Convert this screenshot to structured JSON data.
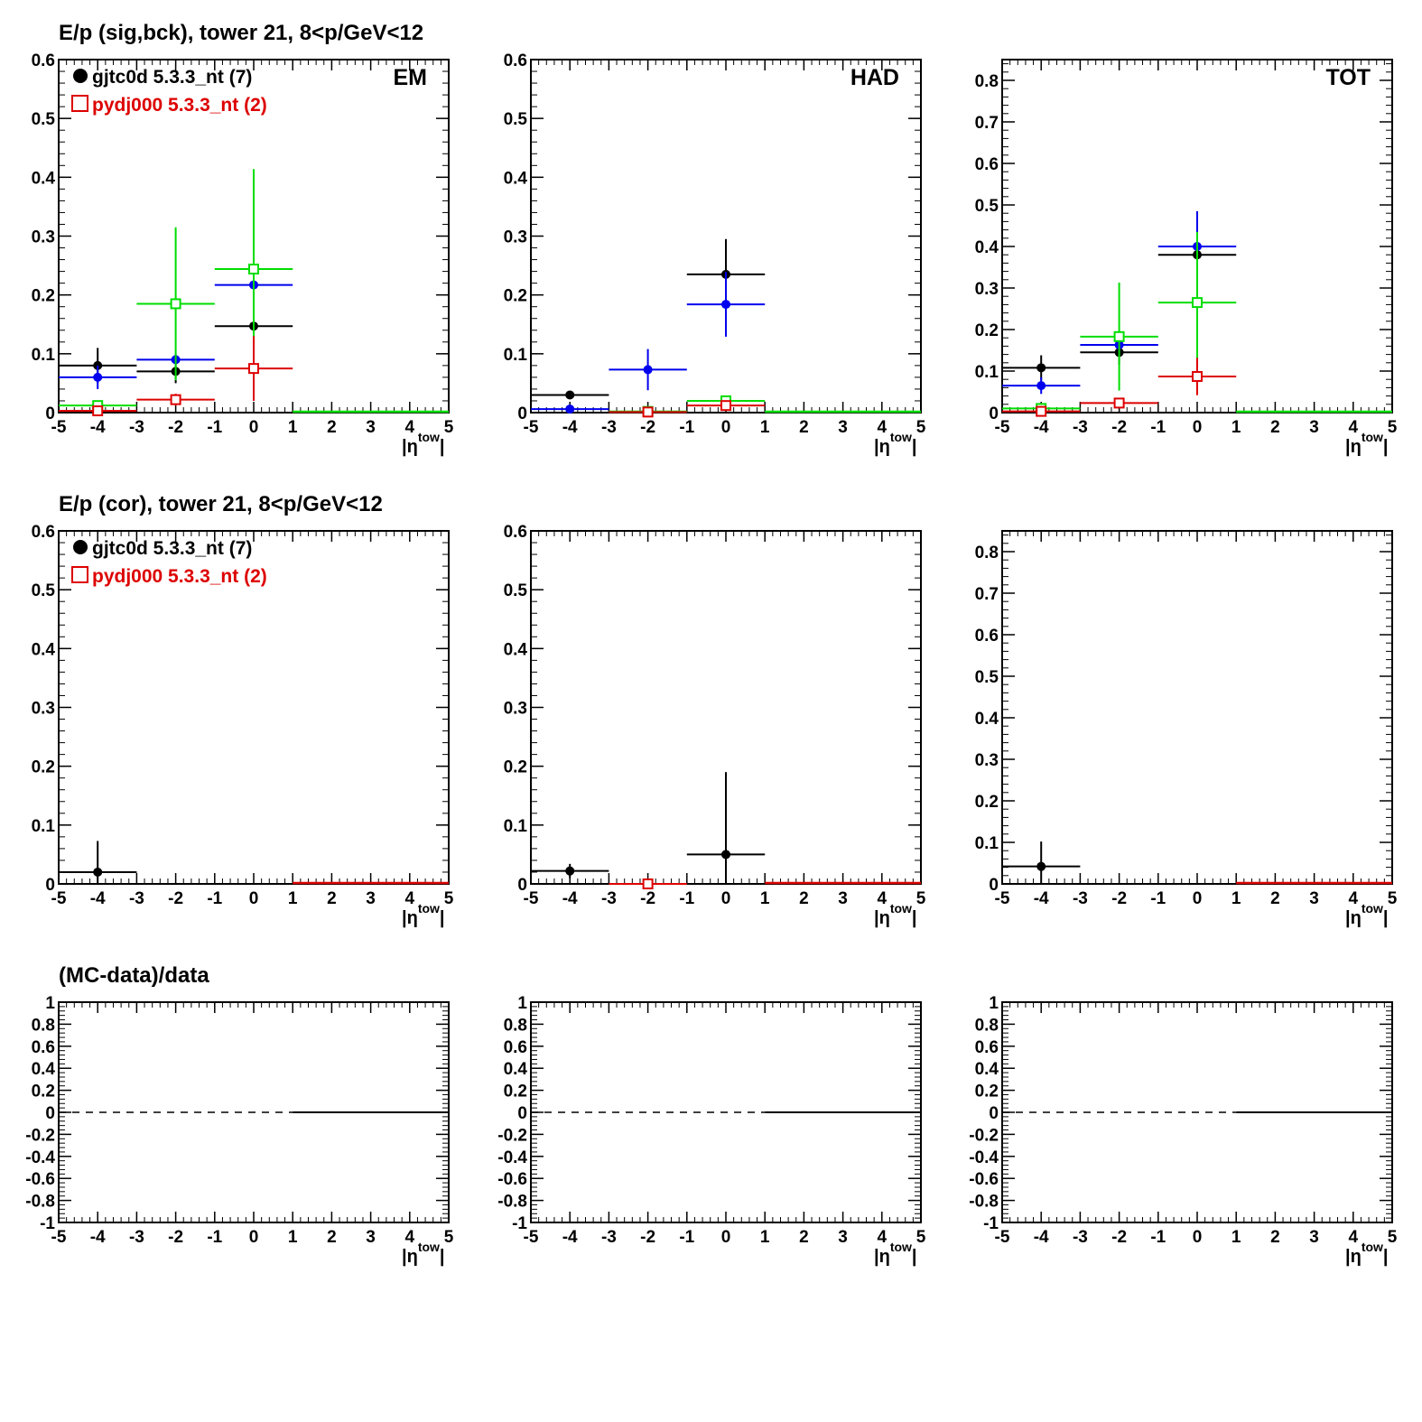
{
  "rows": [
    {
      "title": "E/p (sig,bck), tower 21,  8<p/GeV<12"
    },
    {
      "title": "E/p (cor), tower 21,  8<p/GeV<12"
    },
    {
      "title": "(MC-data)/data"
    }
  ],
  "legend": {
    "data_label": "gjtc0d 5.3.3_nt (7)",
    "mc_label": "pydj000 5.3.3_nt (2)"
  },
  "colors": {
    "black": "#000000",
    "blue": "#0000ee",
    "green": "#00dd00",
    "red": "#dd0000"
  },
  "chart_data": [
    {
      "type": "scatter",
      "row": 0,
      "tag": "EM",
      "xlabel": "|η^tow|",
      "xlim": [
        -5,
        5
      ],
      "ylim": [
        0,
        0.6
      ],
      "yticks": [
        "0",
        "0.1",
        "0.2",
        "0.3",
        "0.4",
        "0.5",
        "0.6"
      ],
      "xticks": [
        "-5",
        "-4",
        "-3",
        "-2",
        "-1",
        "0",
        "1",
        "2",
        "3",
        "4",
        "5"
      ],
      "series": [
        {
          "color": "black",
          "marker": "dot",
          "points": [
            {
              "x": -4,
              "y": 0.08,
              "xerr": 1,
              "yerr": 0.03
            },
            {
              "x": -2,
              "y": 0.07,
              "xerr": 1,
              "yerr": 0.02
            },
            {
              "x": 0,
              "y": 0.147,
              "xerr": 1,
              "yerr": 0.03
            }
          ]
        },
        {
          "color": "blue",
          "marker": "dot",
          "points": [
            {
              "x": -4,
              "y": 0.06,
              "xerr": 1,
              "yerr": 0.02
            },
            {
              "x": -2,
              "y": 0.09,
              "xerr": 1,
              "yerr": 0.01
            },
            {
              "x": 0,
              "y": 0.217,
              "xerr": 1,
              "yerr": 0.02
            }
          ]
        },
        {
          "color": "green",
          "marker": "square",
          "points": [
            {
              "x": -4,
              "y": 0.012,
              "xerr": 1,
              "yerr": 0.005
            },
            {
              "x": -2,
              "y": 0.185,
              "xerr": 1,
              "yerr": 0.13
            },
            {
              "x": 0,
              "y": 0.244,
              "xerr": 1,
              "yerr": 0.17
            }
          ]
        },
        {
          "color": "red",
          "marker": "square",
          "points": [
            {
              "x": -4,
              "y": 0.003,
              "xerr": 1,
              "yerr": 0
            },
            {
              "x": -2,
              "y": 0.022,
              "xerr": 1,
              "yerr": 0.01
            },
            {
              "x": 0,
              "y": 0.075,
              "xerr": 1,
              "yerr": 0.055
            }
          ]
        }
      ]
    },
    {
      "type": "scatter",
      "row": 0,
      "tag": "HAD",
      "xlabel": "|η^tow|",
      "xlim": [
        -5,
        5
      ],
      "ylim": [
        0,
        0.6
      ],
      "yticks": [
        "0",
        "0.1",
        "0.2",
        "0.3",
        "0.4",
        "0.5",
        "0.6"
      ],
      "xticks": [
        "-5",
        "-4",
        "-3",
        "-2",
        "-1",
        "0",
        "1",
        "2",
        "3",
        "4",
        "5"
      ],
      "series": [
        {
          "color": "black",
          "marker": "dot",
          "points": [
            {
              "x": -4,
              "y": 0.03,
              "xerr": 1,
              "yerr": 0.005
            },
            {
              "x": 0,
              "y": 0.235,
              "xerr": 1,
              "yerr": 0.06
            }
          ]
        },
        {
          "color": "blue",
          "marker": "dot",
          "points": [
            {
              "x": -4,
              "y": 0.006,
              "xerr": 1,
              "yerr": 0.003
            },
            {
              "x": -2,
              "y": 0.073,
              "xerr": 1,
              "yerr": 0.035
            },
            {
              "x": 0,
              "y": 0.184,
              "xerr": 1,
              "yerr": 0.055
            }
          ]
        },
        {
          "color": "green",
          "marker": "square",
          "points": [
            {
              "x": -2,
              "y": 0.002,
              "xerr": 1,
              "yerr": 0
            },
            {
              "x": 0,
              "y": 0.02,
              "xerr": 1,
              "yerr": 0.008
            }
          ]
        },
        {
          "color": "red",
          "marker": "square",
          "points": [
            {
              "x": -2,
              "y": 0.001,
              "xerr": 1,
              "yerr": 0
            },
            {
              "x": 0,
              "y": 0.012,
              "xerr": 1,
              "yerr": 0.006
            }
          ]
        }
      ]
    },
    {
      "type": "scatter",
      "row": 0,
      "tag": "TOT",
      "xlabel": "|η^tow|",
      "xlim": [
        -5,
        5
      ],
      "ylim": [
        0,
        0.85
      ],
      "yticks": [
        "0",
        "0.1",
        "0.2",
        "0.3",
        "0.4",
        "0.5",
        "0.6",
        "0.7",
        "0.8"
      ],
      "xticks": [
        "-5",
        "-4",
        "-3",
        "-2",
        "-1",
        "0",
        "1",
        "2",
        "3",
        "4",
        "5"
      ],
      "series": [
        {
          "color": "black",
          "marker": "dot",
          "points": [
            {
              "x": -4,
              "y": 0.108,
              "xerr": 1,
              "yerr": 0.03
            },
            {
              "x": -2,
              "y": 0.145,
              "xerr": 1,
              "yerr": 0.03
            },
            {
              "x": 0,
              "y": 0.38,
              "xerr": 1,
              "yerr": 0.05
            }
          ]
        },
        {
          "color": "blue",
          "marker": "dot",
          "points": [
            {
              "x": -4,
              "y": 0.065,
              "xerr": 1,
              "yerr": 0.02
            },
            {
              "x": -2,
              "y": 0.163,
              "xerr": 1,
              "yerr": 0.02
            },
            {
              "x": 0,
              "y": 0.4,
              "xerr": 1,
              "yerr": 0.085
            }
          ]
        },
        {
          "color": "green",
          "marker": "square",
          "points": [
            {
              "x": -4,
              "y": 0.01,
              "xerr": 1,
              "yerr": 0.005
            },
            {
              "x": -2,
              "y": 0.183,
              "xerr": 1,
              "yerr": 0.13
            },
            {
              "x": 0,
              "y": 0.265,
              "xerr": 1,
              "yerr": 0.17
            }
          ]
        },
        {
          "color": "red",
          "marker": "square",
          "points": [
            {
              "x": -4,
              "y": 0.003,
              "xerr": 1,
              "yerr": 0
            },
            {
              "x": -2,
              "y": 0.023,
              "xerr": 1,
              "yerr": 0.01
            },
            {
              "x": 0,
              "y": 0.087,
              "xerr": 1,
              "yerr": 0.045
            }
          ]
        }
      ]
    },
    {
      "type": "scatter",
      "row": 1,
      "tag": "",
      "xlabel": "|η^tow|",
      "xlim": [
        -5,
        5
      ],
      "ylim": [
        0,
        0.6
      ],
      "yticks": [
        "0",
        "0.1",
        "0.2",
        "0.3",
        "0.4",
        "0.5",
        "0.6"
      ],
      "xticks": [
        "-5",
        "-4",
        "-3",
        "-2",
        "-1",
        "0",
        "1",
        "2",
        "3",
        "4",
        "5"
      ],
      "series": [
        {
          "color": "black",
          "marker": "dot",
          "points": [
            {
              "x": -4,
              "y": 0.02,
              "xerr": 1,
              "yerr": 0.053
            }
          ]
        },
        {
          "color": "red",
          "marker": "square",
          "points": []
        }
      ]
    },
    {
      "type": "scatter",
      "row": 1,
      "tag": "",
      "xlabel": "|η^tow|",
      "xlim": [
        -5,
        5
      ],
      "ylim": [
        0,
        0.6
      ],
      "yticks": [
        "0",
        "0.1",
        "0.2",
        "0.3",
        "0.4",
        "0.5",
        "0.6"
      ],
      "xticks": [
        "-5",
        "-4",
        "-3",
        "-2",
        "-1",
        "0",
        "1",
        "2",
        "3",
        "4",
        "5"
      ],
      "series": [
        {
          "color": "black",
          "marker": "dot",
          "points": [
            {
              "x": -4,
              "y": 0.022,
              "xerr": 1,
              "yerr": 0.012
            },
            {
              "x": 0,
              "y": 0.05,
              "xerr": 1,
              "yerr": 0.14
            }
          ]
        },
        {
          "color": "red",
          "marker": "square",
          "points": [
            {
              "x": -2,
              "y": 0.0,
              "xerr": 1,
              "yerr": 0
            }
          ]
        }
      ]
    },
    {
      "type": "scatter",
      "row": 1,
      "tag": "",
      "xlabel": "|η^tow|",
      "xlim": [
        -5,
        5
      ],
      "ylim": [
        0,
        0.85
      ],
      "yticks": [
        "0",
        "0.1",
        "0.2",
        "0.3",
        "0.4",
        "0.5",
        "0.6",
        "0.7",
        "0.8"
      ],
      "xticks": [
        "-5",
        "-4",
        "-3",
        "-2",
        "-1",
        "0",
        "1",
        "2",
        "3",
        "4",
        "5"
      ],
      "series": [
        {
          "color": "black",
          "marker": "dot",
          "points": [
            {
              "x": -4,
              "y": 0.042,
              "xerr": 1,
              "yerr": 0.06
            }
          ]
        }
      ]
    },
    {
      "type": "line",
      "row": 2,
      "tag": "",
      "xlabel": "|η^tow|",
      "xlim": [
        -5,
        5
      ],
      "ylim": [
        -1,
        1
      ],
      "yticks": [
        "-1",
        "-0.8",
        "-0.6",
        "-0.4",
        "-0.2",
        "0",
        "0.2",
        "0.4",
        "0.6",
        "0.8",
        "1"
      ],
      "xticks": [
        "-5",
        "-4",
        "-3",
        "-2",
        "-1",
        "0",
        "1",
        "2",
        "3",
        "4",
        "5"
      ],
      "reference_line": {
        "y": 0,
        "dashed_range": [
          -5,
          1
        ],
        "solid_range": [
          1,
          5
        ]
      },
      "series": []
    },
    {
      "type": "line",
      "row": 2,
      "tag": "",
      "xlabel": "|η^tow|",
      "xlim": [
        -5,
        5
      ],
      "ylim": [
        -1,
        1
      ],
      "yticks": [
        "-1",
        "-0.8",
        "-0.6",
        "-0.4",
        "-0.2",
        "0",
        "0.2",
        "0.4",
        "0.6",
        "0.8",
        "1"
      ],
      "xticks": [
        "-5",
        "-4",
        "-3",
        "-2",
        "-1",
        "0",
        "1",
        "2",
        "3",
        "4",
        "5"
      ],
      "reference_line": {
        "y": 0,
        "dashed_range": [
          -5,
          1
        ],
        "solid_range": [
          1,
          5
        ]
      },
      "series": []
    },
    {
      "type": "line",
      "row": 2,
      "tag": "",
      "xlabel": "|η^tow|",
      "xlim": [
        -5,
        5
      ],
      "ylim": [
        -1,
        1
      ],
      "yticks": [
        "-1",
        "-0.8",
        "-0.6",
        "-0.4",
        "-0.2",
        "0",
        "0.2",
        "0.4",
        "0.6",
        "0.8",
        "1"
      ],
      "xticks": [
        "-5",
        "-4",
        "-3",
        "-2",
        "-1",
        "0",
        "1",
        "2",
        "3",
        "4",
        "5"
      ],
      "reference_line": {
        "y": 0,
        "dashed_range": [
          -5,
          1
        ],
        "solid_range": [
          1,
          5
        ]
      },
      "series": []
    }
  ]
}
